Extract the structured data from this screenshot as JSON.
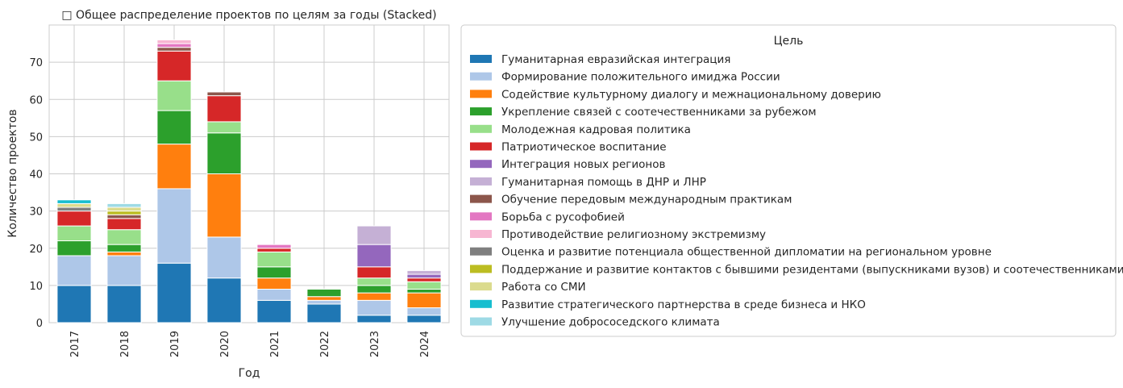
{
  "chart_data": {
    "type": "bar",
    "stacked": true,
    "title": "□ Общее распределение проектов по целям за годы (Stacked)",
    "xlabel": "Год",
    "ylabel": "Количество проектов",
    "ylim": [
      0,
      80
    ],
    "yticks": [
      0,
      10,
      20,
      30,
      40,
      50,
      60,
      70
    ],
    "grid": true,
    "legend_title": "Цель",
    "legend_position": "outside-right",
    "categories": [
      "2017",
      "2018",
      "2019",
      "2020",
      "2021",
      "2022",
      "2023",
      "2024"
    ],
    "series": [
      {
        "name": "Гуманитарная евразийская интеграция",
        "color": "#1f77b4",
        "values": [
          10,
          10,
          16,
          12,
          6,
          5,
          2,
          2
        ]
      },
      {
        "name": "Формирование положительного имиджа России",
        "color": "#aec7e8",
        "values": [
          8,
          8,
          20,
          11,
          3,
          1,
          4,
          2
        ]
      },
      {
        "name": "Содействие культурному диалогу и межнациональному доверию",
        "color": "#ff7f0e",
        "values": [
          0,
          1,
          12,
          17,
          3,
          1,
          2,
          4
        ]
      },
      {
        "name": "Укрепление связей с соотечественниками за рубежом",
        "color": "#2ca02c",
        "values": [
          4,
          2,
          9,
          11,
          3,
          2,
          2,
          1
        ]
      },
      {
        "name": "Молодежная кадровая политика",
        "color": "#98df8a",
        "values": [
          4,
          4,
          8,
          3,
          4,
          0,
          2,
          2
        ]
      },
      {
        "name": "Патриотическое воспитание",
        "color": "#d62728",
        "values": [
          4,
          3,
          8,
          7,
          1,
          0,
          3,
          1
        ]
      },
      {
        "name": "Интеграция новых регионов",
        "color": "#9467bd",
        "values": [
          0,
          0,
          0,
          0,
          0,
          0,
          6,
          1
        ]
      },
      {
        "name": "Гуманитарная помощь в ДНР и ЛНР",
        "color": "#c5b0d5",
        "values": [
          0,
          0,
          0,
          0,
          0,
          0,
          5,
          1
        ]
      },
      {
        "name": "Обучение передовым международным практикам",
        "color": "#8c564b",
        "values": [
          0,
          1,
          1,
          1,
          0,
          0,
          0,
          0
        ]
      },
      {
        "name": "Борьба с русофобией",
        "color": "#e377c2",
        "values": [
          0,
          0,
          1,
          0,
          1,
          0,
          0,
          0
        ]
      },
      {
        "name": "Противодействие религиозному экстремизму",
        "color": "#f7b6d2",
        "values": [
          0,
          0,
          1,
          0,
          0,
          0,
          0,
          0
        ]
      },
      {
        "name": "Оценка и развитие потенциала общественной дипломатии на региональном уровне",
        "color": "#7f7f7f",
        "values": [
          1,
          0,
          0,
          0,
          0,
          0,
          0,
          0
        ]
      },
      {
        "name": "Поддержание и развитие контактов с бывшими резидентами (выпускниками вузов) и соотечественниками",
        "color": "#bcbd22",
        "values": [
          0,
          1,
          0,
          0,
          0,
          0,
          0,
          0
        ]
      },
      {
        "name": "Работа со СМИ",
        "color": "#dbdb8d",
        "values": [
          1,
          1,
          0,
          0,
          0,
          0,
          0,
          0
        ]
      },
      {
        "name": "Развитие стратегического партнерства в среде бизнеса и НКО",
        "color": "#17becf",
        "values": [
          1,
          0,
          0,
          0,
          0,
          0,
          0,
          0
        ]
      },
      {
        "name": "Улучшение добрососедского климата",
        "color": "#9edae5",
        "values": [
          0,
          1,
          0,
          0,
          0,
          0,
          0,
          0
        ]
      }
    ]
  }
}
